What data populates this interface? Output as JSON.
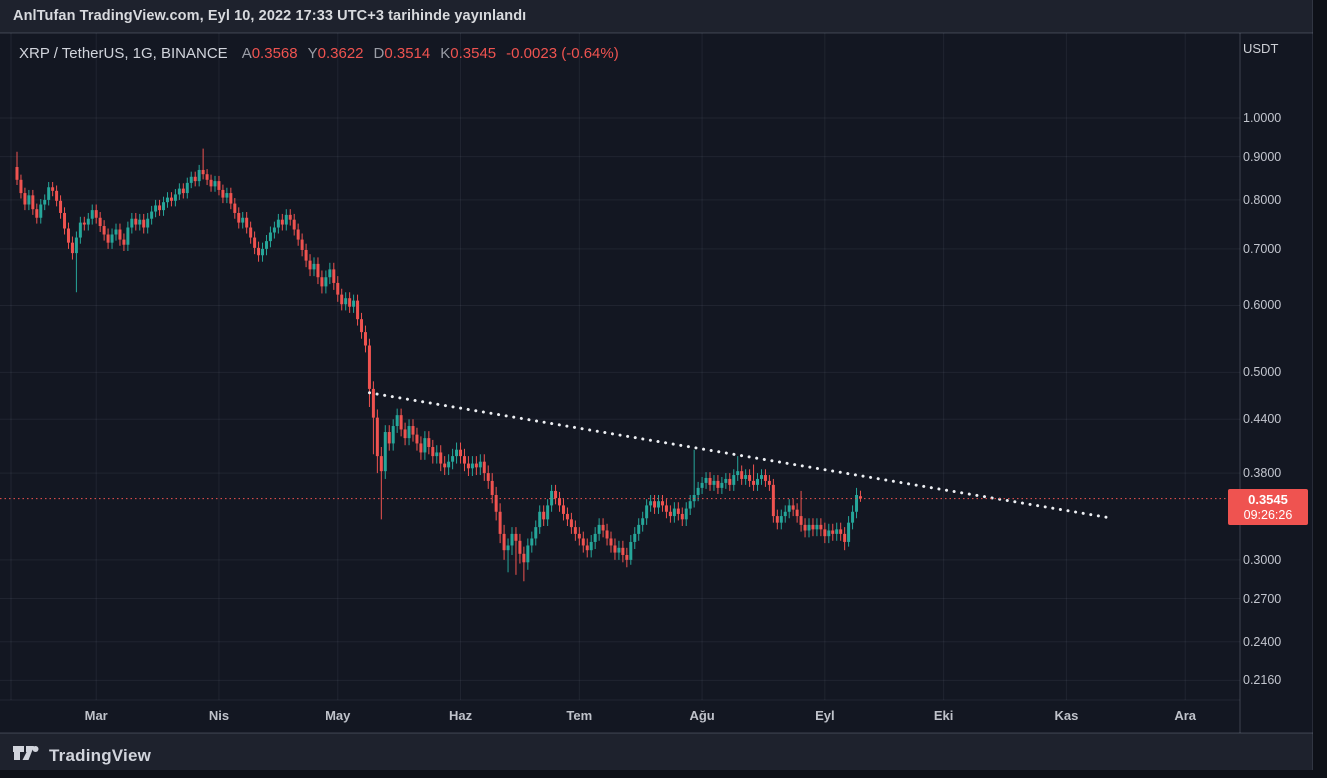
{
  "published_bar": {
    "text": "AnlTufan TradingView.com, Eyl 10, 2022 17:33 UTC+3 tarihinde yayınlandı"
  },
  "header": {
    "symbol": "XRP / TetherUS, 1G, BINANCE",
    "ohlc": [
      {
        "label": "A",
        "value": "0.3568"
      },
      {
        "label": "Y",
        "value": "0.3622"
      },
      {
        "label": "D",
        "value": "0.3514"
      },
      {
        "label": "K",
        "value": "0.3545"
      }
    ],
    "change": "-0.0023 (-0.64%)"
  },
  "price_axis": {
    "unit": "USDT",
    "ticks": [
      {
        "label": "1.0000",
        "value": 1.0
      },
      {
        "label": "0.9000",
        "value": 0.9
      },
      {
        "label": "0.8000",
        "value": 0.8
      },
      {
        "label": "0.7000",
        "value": 0.7
      },
      {
        "label": "0.6000",
        "value": 0.6
      },
      {
        "label": "0.5000",
        "value": 0.5
      },
      {
        "label": "0.4400",
        "value": 0.44
      },
      {
        "label": "0.3800",
        "value": 0.38
      },
      {
        "label": "0.3000",
        "value": 0.3
      },
      {
        "label": "0.2700",
        "value": 0.27
      },
      {
        "label": "0.2400",
        "value": 0.24
      },
      {
        "label": "0.2160",
        "value": 0.216
      }
    ]
  },
  "price_label": {
    "price": "0.3545",
    "countdown": "09:26:26",
    "value": 0.3545
  },
  "footer": {
    "brand": "TradingView"
  },
  "colors": {
    "background": "#131722",
    "band": "#1e222d",
    "edge": "#0e1118",
    "up": "#26a69a",
    "down": "#ef5350",
    "grid": "rgba(148,158,178,0.10)",
    "border": "rgba(170,178,197,0.28)",
    "faint_border": "rgba(170,178,197,0.10)",
    "trendline": "#eef0f4",
    "last_price_line": "#ef5350"
  },
  "chart_data": {
    "type": "candlestick",
    "symbol": "XRP/USDT",
    "interval": "1G",
    "exchange": "BINANCE",
    "scale": "log",
    "start_date": "2022-02-09",
    "end_date": "2022-09-10",
    "months": [
      {
        "label": "Mar",
        "dayIndex": 20
      },
      {
        "label": "Nis",
        "dayIndex": 51
      },
      {
        "label": "May",
        "dayIndex": 81
      },
      {
        "label": "Haz",
        "dayIndex": 112
      },
      {
        "label": "Tem",
        "dayIndex": 142
      },
      {
        "label": "Ağu",
        "dayIndex": 173
      },
      {
        "label": "Eyl",
        "dayIndex": 204
      },
      {
        "label": "Eki",
        "dayIndex": 234
      },
      {
        "label": "Kas",
        "dayIndex": 265
      },
      {
        "label": "Ara",
        "dayIndex": 295
      }
    ],
    "trendline": {
      "dayIndex1": 89,
      "price1": 0.473,
      "dayIndex2": 275,
      "price2": 0.337,
      "style": "dotted"
    },
    "last_price": 0.3545,
    "candles": [
      [
        0.875,
        0.912,
        0.833,
        0.845
      ],
      [
        0.845,
        0.857,
        0.803,
        0.815
      ],
      [
        0.815,
        0.827,
        0.778,
        0.79
      ],
      [
        0.79,
        0.822,
        0.778,
        0.81
      ],
      [
        0.81,
        0.822,
        0.768,
        0.78
      ],
      [
        0.78,
        0.792,
        0.75,
        0.762
      ],
      [
        0.762,
        0.802,
        0.75,
        0.79
      ],
      [
        0.79,
        0.812,
        0.778,
        0.8
      ],
      [
        0.8,
        0.84,
        0.788,
        0.828
      ],
      [
        0.828,
        0.84,
        0.808,
        0.82
      ],
      [
        0.82,
        0.832,
        0.786,
        0.798
      ],
      [
        0.798,
        0.81,
        0.76,
        0.772
      ],
      [
        0.772,
        0.784,
        0.728,
        0.74
      ],
      [
        0.74,
        0.752,
        0.7,
        0.712
      ],
      [
        0.712,
        0.724,
        0.68,
        0.692
      ],
      [
        0.692,
        0.734,
        0.622,
        0.722
      ],
      [
        0.722,
        0.764,
        0.71,
        0.752
      ],
      [
        0.752,
        0.764,
        0.736,
        0.748
      ],
      [
        0.748,
        0.772,
        0.736,
        0.76
      ],
      [
        0.76,
        0.79,
        0.748,
        0.778
      ],
      [
        0.778,
        0.79,
        0.75,
        0.762
      ],
      [
        0.762,
        0.774,
        0.733,
        0.745
      ],
      [
        0.745,
        0.757,
        0.716,
        0.728
      ],
      [
        0.728,
        0.74,
        0.7,
        0.712
      ],
      [
        0.712,
        0.74,
        0.7,
        0.728
      ],
      [
        0.728,
        0.75,
        0.716,
        0.738
      ],
      [
        0.738,
        0.75,
        0.706,
        0.718
      ],
      [
        0.718,
        0.73,
        0.696,
        0.708
      ],
      [
        0.708,
        0.754,
        0.696,
        0.742
      ],
      [
        0.742,
        0.772,
        0.73,
        0.76
      ],
      [
        0.76,
        0.772,
        0.736,
        0.748
      ],
      [
        0.748,
        0.77,
        0.736,
        0.758
      ],
      [
        0.758,
        0.77,
        0.73,
        0.742
      ],
      [
        0.742,
        0.772,
        0.73,
        0.76
      ],
      [
        0.76,
        0.787,
        0.748,
        0.775
      ],
      [
        0.775,
        0.8,
        0.763,
        0.788
      ],
      [
        0.788,
        0.8,
        0.766,
        0.778
      ],
      [
        0.778,
        0.807,
        0.766,
        0.795
      ],
      [
        0.795,
        0.817,
        0.783,
        0.805
      ],
      [
        0.805,
        0.817,
        0.786,
        0.798
      ],
      [
        0.798,
        0.824,
        0.786,
        0.812
      ],
      [
        0.812,
        0.837,
        0.8,
        0.825
      ],
      [
        0.825,
        0.837,
        0.803,
        0.815
      ],
      [
        0.815,
        0.85,
        0.803,
        0.838
      ],
      [
        0.838,
        0.864,
        0.826,
        0.852
      ],
      [
        0.852,
        0.864,
        0.83,
        0.842
      ],
      [
        0.842,
        0.88,
        0.83,
        0.868
      ],
      [
        0.868,
        0.92,
        0.846,
        0.858
      ],
      [
        0.858,
        0.87,
        0.833,
        0.845
      ],
      [
        0.845,
        0.857,
        0.818,
        0.83
      ],
      [
        0.83,
        0.854,
        0.818,
        0.842
      ],
      [
        0.842,
        0.854,
        0.81,
        0.822
      ],
      [
        0.822,
        0.834,
        0.793,
        0.805
      ],
      [
        0.805,
        0.827,
        0.793,
        0.815
      ],
      [
        0.815,
        0.827,
        0.78,
        0.792
      ],
      [
        0.792,
        0.804,
        0.76,
        0.772
      ],
      [
        0.772,
        0.784,
        0.74,
        0.752
      ],
      [
        0.752,
        0.774,
        0.74,
        0.762
      ],
      [
        0.762,
        0.774,
        0.73,
        0.742
      ],
      [
        0.742,
        0.754,
        0.71,
        0.722
      ],
      [
        0.722,
        0.734,
        0.69,
        0.702
      ],
      [
        0.702,
        0.714,
        0.676,
        0.688
      ],
      [
        0.688,
        0.712,
        0.676,
        0.7
      ],
      [
        0.7,
        0.727,
        0.688,
        0.715
      ],
      [
        0.715,
        0.744,
        0.703,
        0.732
      ],
      [
        0.732,
        0.754,
        0.72,
        0.742
      ],
      [
        0.742,
        0.77,
        0.73,
        0.758
      ],
      [
        0.758,
        0.77,
        0.736,
        0.748
      ],
      [
        0.748,
        0.78,
        0.736,
        0.768
      ],
      [
        0.768,
        0.78,
        0.746,
        0.758
      ],
      [
        0.758,
        0.77,
        0.726,
        0.738
      ],
      [
        0.738,
        0.75,
        0.706,
        0.718
      ],
      [
        0.718,
        0.73,
        0.686,
        0.698
      ],
      [
        0.698,
        0.71,
        0.666,
        0.678
      ],
      [
        0.678,
        0.69,
        0.65,
        0.662
      ],
      [
        0.662,
        0.684,
        0.65,
        0.672
      ],
      [
        0.672,
        0.684,
        0.636,
        0.648
      ],
      [
        0.648,
        0.66,
        0.62,
        0.632
      ],
      [
        0.632,
        0.66,
        0.62,
        0.648
      ],
      [
        0.648,
        0.674,
        0.636,
        0.662
      ],
      [
        0.662,
        0.674,
        0.626,
        0.638
      ],
      [
        0.638,
        0.65,
        0.606,
        0.618
      ],
      [
        0.618,
        0.628,
        0.592,
        0.602
      ],
      [
        0.602,
        0.622,
        0.592,
        0.612
      ],
      [
        0.612,
        0.622,
        0.588,
        0.598
      ],
      [
        0.598,
        0.618,
        0.588,
        0.608
      ],
      [
        0.608,
        0.618,
        0.568,
        0.578
      ],
      [
        0.578,
        0.588,
        0.548,
        0.558
      ],
      [
        0.558,
        0.568,
        0.528,
        0.538
      ],
      [
        0.538,
        0.548,
        0.455,
        0.478
      ],
      [
        0.478,
        0.488,
        0.4,
        0.442
      ],
      [
        0.442,
        0.452,
        0.38,
        0.398
      ],
      [
        0.398,
        0.408,
        0.335,
        0.382
      ],
      [
        0.382,
        0.433,
        0.374,
        0.425
      ],
      [
        0.425,
        0.433,
        0.404,
        0.412
      ],
      [
        0.412,
        0.44,
        0.404,
        0.432
      ],
      [
        0.432,
        0.453,
        0.424,
        0.445
      ],
      [
        0.445,
        0.453,
        0.42,
        0.428
      ],
      [
        0.428,
        0.436,
        0.41,
        0.418
      ],
      [
        0.418,
        0.44,
        0.41,
        0.432
      ],
      [
        0.432,
        0.44,
        0.414,
        0.422
      ],
      [
        0.422,
        0.43,
        0.404,
        0.412
      ],
      [
        0.412,
        0.42,
        0.394,
        0.402
      ],
      [
        0.402,
        0.426,
        0.394,
        0.418
      ],
      [
        0.418,
        0.426,
        0.4,
        0.408
      ],
      [
        0.408,
        0.416,
        0.39,
        0.398
      ],
      [
        0.398,
        0.41,
        0.39,
        0.402
      ],
      [
        0.402,
        0.41,
        0.382,
        0.39
      ],
      [
        0.39,
        0.398,
        0.378,
        0.386
      ],
      [
        0.386,
        0.4,
        0.378,
        0.392
      ],
      [
        0.392,
        0.406,
        0.384,
        0.398
      ],
      [
        0.398,
        0.413,
        0.39,
        0.405
      ],
      [
        0.405,
        0.413,
        0.39,
        0.398
      ],
      [
        0.398,
        0.406,
        0.382,
        0.39
      ],
      [
        0.39,
        0.398,
        0.377,
        0.385
      ],
      [
        0.385,
        0.398,
        0.377,
        0.39
      ],
      [
        0.39,
        0.398,
        0.378,
        0.386
      ],
      [
        0.386,
        0.4,
        0.378,
        0.392
      ],
      [
        0.392,
        0.4,
        0.372,
        0.38
      ],
      [
        0.38,
        0.388,
        0.364,
        0.372
      ],
      [
        0.372,
        0.38,
        0.35,
        0.358
      ],
      [
        0.358,
        0.366,
        0.334,
        0.342
      ],
      [
        0.342,
        0.35,
        0.314,
        0.322
      ],
      [
        0.322,
        0.33,
        0.3,
        0.308
      ],
      [
        0.308,
        0.318,
        0.29,
        0.312
      ],
      [
        0.312,
        0.328,
        0.304,
        0.322
      ],
      [
        0.322,
        0.328,
        0.288,
        0.316
      ],
      [
        0.316,
        0.322,
        0.297,
        0.305
      ],
      [
        0.305,
        0.311,
        0.283,
        0.298
      ],
      [
        0.298,
        0.318,
        0.292,
        0.312
      ],
      [
        0.312,
        0.324,
        0.306,
        0.318
      ],
      [
        0.318,
        0.334,
        0.312,
        0.328
      ],
      [
        0.328,
        0.348,
        0.322,
        0.342
      ],
      [
        0.342,
        0.348,
        0.329,
        0.335
      ],
      [
        0.335,
        0.354,
        0.329,
        0.348
      ],
      [
        0.348,
        0.368,
        0.342,
        0.362
      ],
      [
        0.362,
        0.368,
        0.349,
        0.355
      ],
      [
        0.355,
        0.361,
        0.342,
        0.348
      ],
      [
        0.348,
        0.354,
        0.334,
        0.34
      ],
      [
        0.34,
        0.346,
        0.329,
        0.335
      ],
      [
        0.335,
        0.341,
        0.322,
        0.328
      ],
      [
        0.328,
        0.334,
        0.316,
        0.322
      ],
      [
        0.322,
        0.328,
        0.312,
        0.318
      ],
      [
        0.318,
        0.324,
        0.306,
        0.312
      ],
      [
        0.312,
        0.318,
        0.302,
        0.308
      ],
      [
        0.308,
        0.321,
        0.302,
        0.315
      ],
      [
        0.315,
        0.328,
        0.309,
        0.322
      ],
      [
        0.322,
        0.336,
        0.316,
        0.33
      ],
      [
        0.33,
        0.336,
        0.319,
        0.325
      ],
      [
        0.325,
        0.331,
        0.312,
        0.318
      ],
      [
        0.318,
        0.324,
        0.306,
        0.312
      ],
      [
        0.312,
        0.318,
        0.3,
        0.306
      ],
      [
        0.306,
        0.316,
        0.3,
        0.31
      ],
      [
        0.31,
        0.316,
        0.298,
        0.304
      ],
      [
        0.304,
        0.31,
        0.294,
        0.3
      ],
      [
        0.3,
        0.321,
        0.296,
        0.315
      ],
      [
        0.315,
        0.328,
        0.309,
        0.322
      ],
      [
        0.322,
        0.336,
        0.316,
        0.33
      ],
      [
        0.33,
        0.342,
        0.324,
        0.336
      ],
      [
        0.336,
        0.354,
        0.33,
        0.348
      ],
      [
        0.348,
        0.358,
        0.342,
        0.352
      ],
      [
        0.352,
        0.358,
        0.34,
        0.346
      ],
      [
        0.346,
        0.358,
        0.34,
        0.352
      ],
      [
        0.352,
        0.358,
        0.342,
        0.348
      ],
      [
        0.348,
        0.354,
        0.336,
        0.342
      ],
      [
        0.342,
        0.348,
        0.332,
        0.338
      ],
      [
        0.338,
        0.351,
        0.332,
        0.345
      ],
      [
        0.345,
        0.351,
        0.334,
        0.34
      ],
      [
        0.34,
        0.346,
        0.329,
        0.335
      ],
      [
        0.335,
        0.351,
        0.329,
        0.345
      ],
      [
        0.345,
        0.358,
        0.339,
        0.352
      ],
      [
        0.352,
        0.405,
        0.346,
        0.358
      ],
      [
        0.358,
        0.371,
        0.352,
        0.365
      ],
      [
        0.365,
        0.376,
        0.359,
        0.37
      ],
      [
        0.37,
        0.381,
        0.364,
        0.375
      ],
      [
        0.375,
        0.381,
        0.362,
        0.368
      ],
      [
        0.368,
        0.378,
        0.362,
        0.372
      ],
      [
        0.372,
        0.378,
        0.359,
        0.365
      ],
      [
        0.365,
        0.376,
        0.359,
        0.37
      ],
      [
        0.37,
        0.38,
        0.364,
        0.374
      ],
      [
        0.374,
        0.38,
        0.362,
        0.368
      ],
      [
        0.368,
        0.384,
        0.362,
        0.378
      ],
      [
        0.378,
        0.398,
        0.372,
        0.382
      ],
      [
        0.382,
        0.388,
        0.368,
        0.374
      ],
      [
        0.374,
        0.384,
        0.368,
        0.378
      ],
      [
        0.378,
        0.384,
        0.366,
        0.372
      ],
      [
        0.372,
        0.389,
        0.362,
        0.368
      ],
      [
        0.368,
        0.38,
        0.362,
        0.374
      ],
      [
        0.374,
        0.384,
        0.368,
        0.378
      ],
      [
        0.378,
        0.384,
        0.366,
        0.372
      ],
      [
        0.372,
        0.378,
        0.362,
        0.368
      ],
      [
        0.368,
        0.374,
        0.332,
        0.338
      ],
      [
        0.338,
        0.344,
        0.326,
        0.332
      ],
      [
        0.332,
        0.344,
        0.326,
        0.338
      ],
      [
        0.338,
        0.348,
        0.332,
        0.342
      ],
      [
        0.342,
        0.354,
        0.336,
        0.348
      ],
      [
        0.348,
        0.354,
        0.338,
        0.344
      ],
      [
        0.344,
        0.35,
        0.332,
        0.338
      ],
      [
        0.338,
        0.362,
        0.324,
        0.33
      ],
      [
        0.33,
        0.336,
        0.319,
        0.325
      ],
      [
        0.325,
        0.336,
        0.319,
        0.33
      ],
      [
        0.33,
        0.336,
        0.32,
        0.326
      ],
      [
        0.326,
        0.336,
        0.32,
        0.33
      ],
      [
        0.33,
        0.336,
        0.32,
        0.326
      ],
      [
        0.326,
        0.332,
        0.314,
        0.32
      ],
      [
        0.32,
        0.331,
        0.314,
        0.325
      ],
      [
        0.325,
        0.331,
        0.316,
        0.322
      ],
      [
        0.322,
        0.332,
        0.316,
        0.326
      ],
      [
        0.326,
        0.332,
        0.316,
        0.322
      ],
      [
        0.322,
        0.328,
        0.308,
        0.315
      ],
      [
        0.315,
        0.338,
        0.311,
        0.332
      ],
      [
        0.332,
        0.348,
        0.326,
        0.342
      ],
      [
        0.342,
        0.365,
        0.336,
        0.358
      ],
      [
        0.3568,
        0.3622,
        0.3514,
        0.3545
      ]
    ]
  }
}
